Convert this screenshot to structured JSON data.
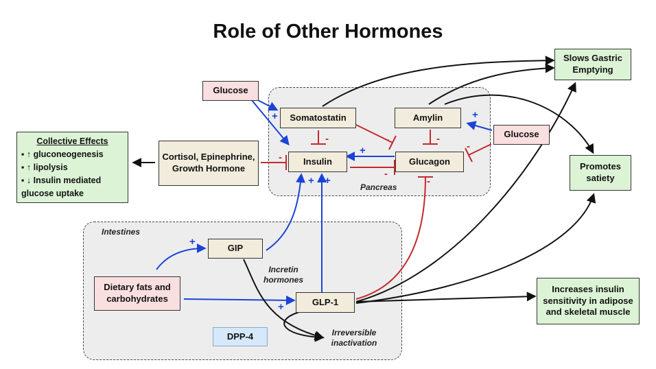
{
  "title": "Role of Other Hormones",
  "regions": {
    "pancreas": "Pancreas",
    "intestines": "Intestines"
  },
  "nodes": {
    "glucose_top": "Glucose",
    "glucose_right": "Glucose",
    "somatostatin": "Somatostatin",
    "amylin": "Amylin",
    "insulin": "Insulin",
    "glucagon": "Glucagon",
    "cortisol": "Cortisol, Epinephrine, Growth Hormone",
    "gip": "GIP",
    "glp1": "GLP-1",
    "dietary": "Dietary fats and carbohydrates",
    "dpp4": "DPP-4",
    "slows_gastric": "Slows Gastric Emptying",
    "satiety": "Promotes satiety",
    "sensitivity": "Increases insulin sensitivity in adipose and skeletal muscle"
  },
  "collective_effects": {
    "heading": "Collective Effects",
    "items": [
      "▪ ↑ gluconeogenesis",
      "▪ ↑ lipolysis",
      "▪ ↓ Insulin mediated glucose uptake"
    ]
  },
  "annotations": {
    "incretin": "Incretin hormones",
    "inactivation": "Irreversible inactivation"
  },
  "signs": {
    "plus": "+",
    "minus": "-"
  },
  "colors": {
    "stimulate": "#1a44d6",
    "inhibit": "#c42a2a",
    "neutral": "#111111"
  }
}
